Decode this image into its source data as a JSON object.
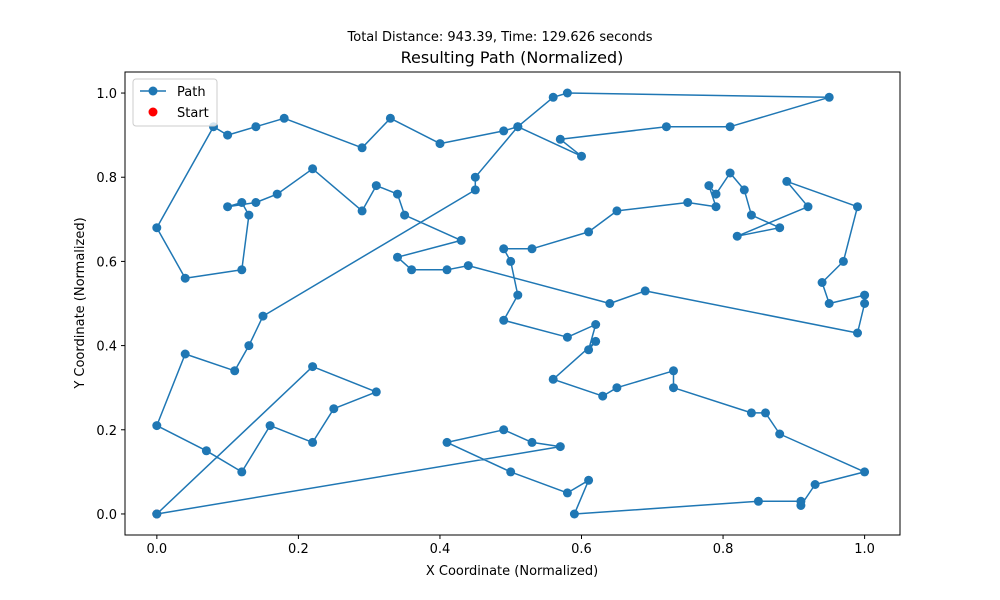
{
  "chart_data": {
    "type": "line",
    "suptitle": "Total Distance: 943.39, Time: 129.626 seconds",
    "title": "Resulting Path (Normalized)",
    "xlabel": "X Coordinate (Normalized)",
    "ylabel": "Y Coordinate (Normalized)",
    "xlim": [
      -0.045,
      1.05
    ],
    "ylim": [
      -0.05,
      1.05
    ],
    "xticks": [
      "0.0",
      "0.2",
      "0.4",
      "0.6",
      "0.8",
      "1.0"
    ],
    "yticks": [
      "0.0",
      "0.2",
      "0.4",
      "0.6",
      "0.8",
      "1.0"
    ],
    "grid": false,
    "legend_position": "top-left",
    "colors": {
      "path": "#1f77b4",
      "start": "#ff0000"
    },
    "series": [
      {
        "name": "Path",
        "points": [
          [
            0.0,
            0.0
          ],
          [
            0.22,
            0.35
          ],
          [
            0.31,
            0.29
          ],
          [
            0.25,
            0.25
          ],
          [
            0.22,
            0.17
          ],
          [
            0.16,
            0.21
          ],
          [
            0.12,
            0.1
          ],
          [
            0.07,
            0.15
          ],
          [
            0.0,
            0.21
          ],
          [
            0.04,
            0.38
          ],
          [
            0.11,
            0.34
          ],
          [
            0.13,
            0.4
          ],
          [
            0.15,
            0.47
          ],
          [
            0.45,
            0.77
          ],
          [
            0.45,
            0.8
          ],
          [
            0.51,
            0.92
          ],
          [
            0.56,
            0.99
          ],
          [
            0.58,
            1.0
          ],
          [
            0.95,
            0.99
          ],
          [
            0.81,
            0.92
          ],
          [
            0.72,
            0.92
          ],
          [
            0.57,
            0.89
          ],
          [
            0.6,
            0.85
          ],
          [
            0.51,
            0.92
          ],
          [
            0.49,
            0.91
          ],
          [
            0.4,
            0.88
          ],
          [
            0.33,
            0.94
          ],
          [
            0.29,
            0.87
          ],
          [
            0.18,
            0.94
          ],
          [
            0.14,
            0.92
          ],
          [
            0.1,
            0.9
          ],
          [
            0.08,
            0.92
          ],
          [
            0.0,
            0.68
          ],
          [
            0.04,
            0.56
          ],
          [
            0.12,
            0.58
          ],
          [
            0.13,
            0.71
          ],
          [
            0.12,
            0.74
          ],
          [
            0.1,
            0.73
          ],
          [
            0.14,
            0.74
          ],
          [
            0.17,
            0.76
          ],
          [
            0.22,
            0.82
          ],
          [
            0.29,
            0.72
          ],
          [
            0.31,
            0.78
          ],
          [
            0.34,
            0.76
          ],
          [
            0.35,
            0.71
          ],
          [
            0.43,
            0.65
          ],
          [
            0.34,
            0.61
          ],
          [
            0.36,
            0.58
          ],
          [
            0.41,
            0.58
          ],
          [
            0.44,
            0.59
          ],
          [
            0.64,
            0.5
          ],
          [
            0.69,
            0.53
          ],
          [
            0.99,
            0.43
          ],
          [
            1.0,
            0.5
          ],
          [
            1.0,
            0.52
          ],
          [
            0.95,
            0.5
          ],
          [
            0.94,
            0.55
          ],
          [
            0.97,
            0.6
          ],
          [
            0.99,
            0.73
          ],
          [
            0.89,
            0.79
          ],
          [
            0.92,
            0.73
          ],
          [
            0.82,
            0.66
          ],
          [
            0.88,
            0.68
          ],
          [
            0.84,
            0.71
          ],
          [
            0.83,
            0.77
          ],
          [
            0.81,
            0.81
          ],
          [
            0.79,
            0.76
          ],
          [
            0.78,
            0.78
          ],
          [
            0.79,
            0.73
          ],
          [
            0.75,
            0.74
          ],
          [
            0.65,
            0.72
          ],
          [
            0.61,
            0.67
          ],
          [
            0.53,
            0.63
          ],
          [
            0.49,
            0.63
          ],
          [
            0.5,
            0.6
          ],
          [
            0.51,
            0.52
          ],
          [
            0.49,
            0.46
          ],
          [
            0.58,
            0.42
          ],
          [
            0.62,
            0.45
          ],
          [
            0.61,
            0.39
          ],
          [
            0.62,
            0.41
          ],
          [
            0.56,
            0.32
          ],
          [
            0.63,
            0.28
          ],
          [
            0.65,
            0.3
          ],
          [
            0.73,
            0.34
          ],
          [
            0.73,
            0.3
          ],
          [
            0.84,
            0.24
          ],
          [
            0.86,
            0.24
          ],
          [
            0.88,
            0.19
          ],
          [
            1.0,
            0.1
          ],
          [
            0.93,
            0.07
          ],
          [
            0.91,
            0.02
          ],
          [
            0.91,
            0.03
          ],
          [
            0.85,
            0.03
          ],
          [
            0.59,
            0.0
          ],
          [
            0.61,
            0.08
          ],
          [
            0.58,
            0.05
          ],
          [
            0.5,
            0.1
          ],
          [
            0.41,
            0.17
          ],
          [
            0.49,
            0.2
          ],
          [
            0.53,
            0.17
          ],
          [
            0.57,
            0.16
          ],
          [
            0.0,
            0.0
          ]
        ]
      }
    ],
    "legend": [
      {
        "label": "Path",
        "marker": "line-dot"
      },
      {
        "label": "Start",
        "marker": "dot"
      }
    ],
    "start_point": [
      0.0,
      0.0
    ]
  }
}
